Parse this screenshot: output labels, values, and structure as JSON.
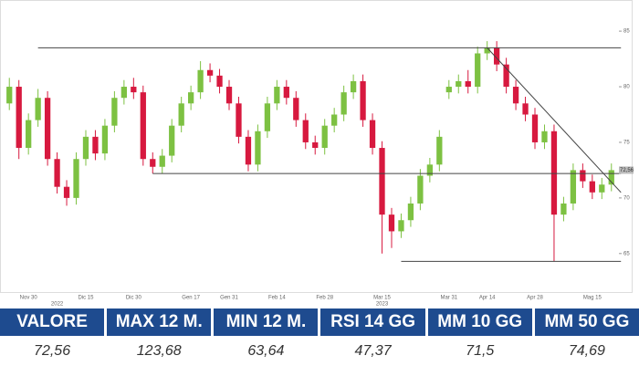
{
  "chart_data": {
    "type": "candlestick",
    "categories": [
      null,
      null,
      "Nov 30",
      null,
      null,
      null,
      null,
      null,
      "Dic 15",
      null,
      null,
      null,
      null,
      "Dic 30",
      null,
      null,
      null,
      null,
      null,
      "Gen 17",
      null,
      null,
      null,
      "Gen 31",
      null,
      null,
      null,
      null,
      "Feb 14",
      null,
      null,
      null,
      null,
      "Feb 28",
      null,
      null,
      null,
      null,
      null,
      "Mar 15",
      null,
      null,
      null,
      null,
      null,
      null,
      "Mar 31",
      null,
      null,
      null,
      "Apr 14",
      null,
      null,
      null,
      null,
      "Apr 28",
      null,
      null,
      null,
      null,
      null,
      "Mag 15",
      null,
      null
    ],
    "year_labels": [
      null,
      null,
      null,
      null,
      null,
      "2022",
      null,
      null,
      null,
      null,
      null,
      null,
      null,
      null,
      null,
      null,
      null,
      null,
      null,
      null,
      null,
      null,
      null,
      null,
      null,
      null,
      null,
      null,
      null,
      null,
      null,
      null,
      null,
      null,
      null,
      null,
      null,
      null,
      null,
      "2023",
      null,
      null,
      null,
      null,
      null,
      null,
      null,
      null,
      null,
      null,
      null,
      null,
      null,
      null,
      null,
      null,
      null,
      null,
      null,
      null,
      null,
      null,
      null,
      null
    ],
    "open": [
      78.5,
      80,
      74.5,
      77,
      79,
      73.5,
      71,
      70,
      73.5,
      75.5,
      74,
      76.5,
      79,
      80,
      79.5,
      73.5,
      72.8,
      73.8,
      76.5,
      78.5,
      79.5,
      81.5,
      81,
      80,
      78.5,
      75.5,
      73,
      76,
      78.5,
      80,
      79,
      77,
      75,
      74.5,
      76.5,
      77.5,
      79.5,
      80.5,
      77,
      74.5,
      68.5,
      67,
      68,
      69.5,
      72,
      73,
      79.5,
      80,
      80.5,
      80,
      83,
      83.5,
      82,
      80,
      78.5,
      77.5,
      75,
      76,
      68.5,
      69.5,
      72.5,
      71.5,
      70.5,
      71.2
    ],
    "high": [
      80.8,
      80.6,
      77.6,
      79.8,
      79.6,
      74.1,
      71.6,
      74.1,
      76.1,
      76.1,
      77.1,
      79.6,
      80.6,
      80.8,
      80.1,
      74.1,
      74.4,
      77.1,
      79.1,
      80.1,
      82.3,
      82.1,
      81.6,
      80.6,
      79.1,
      76.1,
      76.6,
      79.1,
      80.6,
      80.6,
      79.6,
      77.6,
      75.6,
      77.1,
      78.1,
      80.1,
      81.1,
      81.1,
      77.6,
      75.1,
      69.1,
      68.6,
      70.1,
      72.6,
      73.6,
      76.1,
      80.6,
      81.1,
      81.5,
      83.6,
      84.1,
      84.1,
      82.6,
      80.6,
      79.1,
      78.1,
      76.6,
      76.6,
      70.1,
      73.1,
      73.1,
      72.1,
      71.8,
      73.1
    ],
    "low": [
      77.9,
      73.5,
      73.9,
      76.4,
      72.9,
      70.4,
      69.3,
      69.4,
      72.9,
      73.4,
      73.4,
      75.9,
      78.4,
      78.9,
      72.9,
      72.2,
      72.2,
      73.2,
      75.9,
      77.9,
      78.9,
      80.4,
      79.4,
      77.9,
      74.9,
      72.4,
      72.4,
      75.4,
      77.9,
      78.4,
      76.4,
      74.4,
      73.9,
      73.9,
      75.9,
      76.9,
      78.9,
      76.4,
      73.9,
      65,
      65.5,
      66.4,
      67.4,
      68.9,
      71.4,
      72.4,
      78.9,
      79.4,
      79.4,
      79.4,
      82.4,
      81.4,
      79.4,
      77.9,
      76.9,
      74.4,
      74.4,
      64.3,
      67.9,
      68.9,
      70.9,
      69.9,
      69.9,
      70.6
    ],
    "close": [
      80,
      74.5,
      77,
      79,
      73.5,
      71,
      70,
      73.5,
      75.5,
      74,
      76.5,
      79,
      80,
      79.5,
      73.5,
      72.8,
      73.8,
      76.5,
      78.5,
      79.5,
      81.5,
      81,
      80,
      78.5,
      75.5,
      73,
      76,
      78.5,
      80,
      79,
      77,
      75,
      74.5,
      76.5,
      77.5,
      79.5,
      80.5,
      77,
      74.5,
      68.5,
      67,
      68,
      69.5,
      72,
      73,
      75.5,
      80,
      80.5,
      80,
      83,
      83.5,
      82,
      80,
      78.5,
      77.5,
      75,
      76,
      68.5,
      69.5,
      72.5,
      71.5,
      70.5,
      71.2,
      72.5
    ],
    "up_color": "#7dc142",
    "down_color": "#d7193f",
    "ylim": [
      61.7,
      87.8
    ],
    "yticks": [
      65,
      70,
      75,
      80,
      85
    ],
    "grid": false,
    "last_label": "72,56",
    "lines": [
      {
        "x": [
          3,
          63
        ],
        "y": [
          83.5,
          83.5
        ]
      },
      {
        "x": [
          15,
          63
        ],
        "y": [
          72.2,
          72.2
        ]
      },
      {
        "x": [
          41,
          63
        ],
        "y": [
          64.3,
          64.3
        ]
      },
      {
        "x": [
          50,
          63
        ],
        "y": [
          83.5,
          70.5
        ]
      }
    ]
  },
  "table": {
    "headers": [
      "VALORE",
      "MAX 12 M.",
      "MIN 12 M.",
      "RSI 14 GG",
      "MM 10 GG",
      "MM 50 GG"
    ],
    "values": [
      "72,56",
      "123,68",
      "63,64",
      "47,37",
      "71,5",
      "74,69"
    ]
  }
}
